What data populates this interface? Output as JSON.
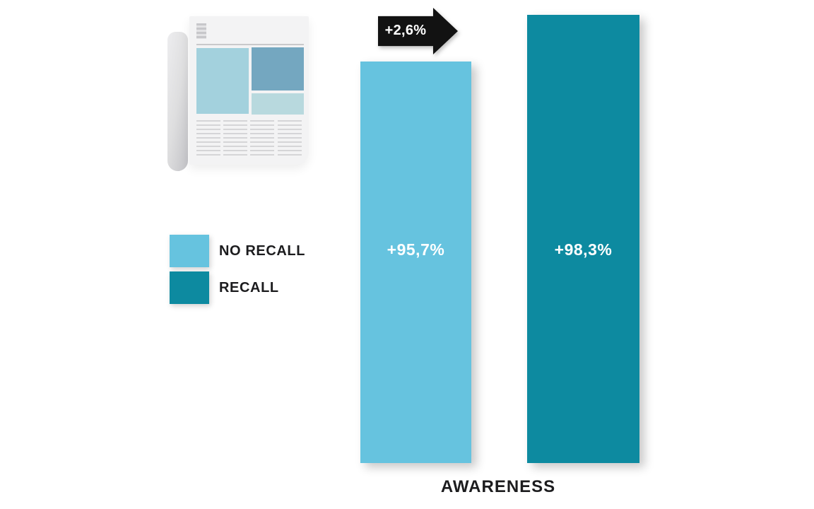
{
  "colors": {
    "no_recall": "#66c3df",
    "recall": "#0d8aa0",
    "arrow": "#121212",
    "label_text": "#1c1c1e",
    "bar_value_text": "#ffffff"
  },
  "icons": {
    "newspaper": "newspaper-icon"
  },
  "legend": {
    "items": [
      {
        "label": "NO RECALL",
        "color": "#66c3df"
      },
      {
        "label": "RECALL",
        "color": "#0d8aa0"
      }
    ]
  },
  "annotation": {
    "delta": "+2,6%"
  },
  "bars": [
    {
      "name": "NO RECALL",
      "value": 95.7,
      "value_label": "+95,7%",
      "color": "#66c3df"
    },
    {
      "name": "RECALL",
      "value": 98.3,
      "value_label": "+98,3%",
      "color": "#0d8aa0"
    }
  ],
  "xlabel": "AWARENESS",
  "chart_data": {
    "type": "bar",
    "title": "",
    "categories": [
      "NO RECALL",
      "RECALL"
    ],
    "values": [
      95.7,
      98.3
    ],
    "value_labels": [
      "+95,7%",
      "+98,3%"
    ],
    "xlabel": "AWARENESS",
    "ylabel": "",
    "legend_position": "left",
    "grid": false,
    "annotations": [
      "+2,6%"
    ],
    "series_colors": [
      "#66c3df",
      "#0d8aa0"
    ]
  }
}
